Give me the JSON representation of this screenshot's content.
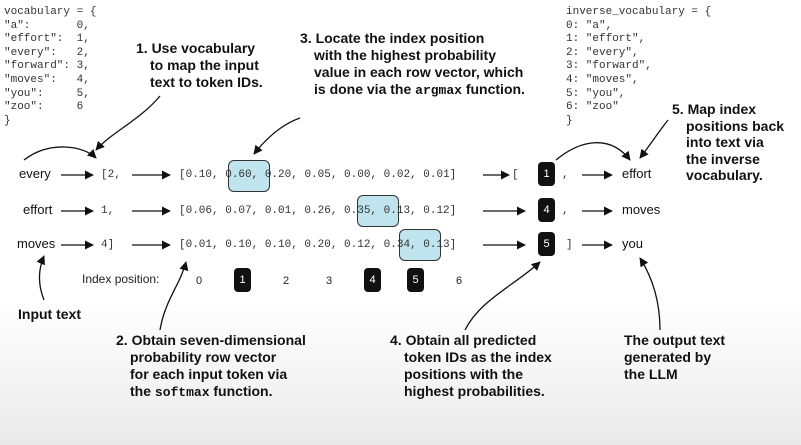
{
  "vocabulary": {
    "header": "vocabulary = {",
    "lines": [
      "\"a\":       0,",
      "\"effort\":  1,",
      "\"every\":   2,",
      "\"forward\": 3,",
      "\"moves\":   4,",
      "\"you\":     5,",
      "\"zoo\":     6"
    ],
    "footer": "}"
  },
  "inverse_vocabulary": {
    "header": "inverse_vocabulary = {",
    "lines": [
      "0: \"a\",",
      "1: \"effort\",",
      "2: \"every\",",
      "3: \"forward\",",
      "4: \"moves\",",
      "5: \"you\",",
      "6: \"zoo\""
    ],
    "footer": "}"
  },
  "rows": [
    {
      "input": "every",
      "token_id": "[2,",
      "probs_prefix": "[0.10, ",
      "probs_highlight": "0.60,",
      "probs_suffix": " 0.20, 0.05, 0.00, 0.02, 0.01]",
      "pred_open": "[",
      "pred": "1",
      "pred_close": ",",
      "output": "effort"
    },
    {
      "input": "effort",
      "token_id": "1,",
      "probs_prefix": "[0.06, 0.07, 0.01, 0.26, ",
      "probs_highlight": "0.35,",
      "probs_suffix": " 0.13, 0.12]",
      "pred_open": "",
      "pred": "4",
      "pred_close": ",",
      "output": "moves"
    },
    {
      "input": "moves",
      "token_id": "4]",
      "probs_prefix": "[0.01, 0.10, 0.10, 0.20, 0.12, ",
      "probs_highlight": "0.34,",
      "probs_suffix": " 0.13]",
      "pred_open": "",
      "pred": "5",
      "pred_close": "]",
      "output": "you"
    }
  ],
  "index_position": {
    "label": "Index position:",
    "values": [
      "0",
      "1",
      "2",
      "3",
      "4",
      "5",
      "6"
    ],
    "highlighted": [
      1,
      4,
      5
    ]
  },
  "annotations": {
    "a1": [
      "1. Use vocabulary",
      "to map the input",
      "text to token IDs."
    ],
    "a2": [
      "2. Obtain seven-dimensional",
      "probability row vector",
      "for each input token via"
    ],
    "a2_last_prefix": "the ",
    "a2_code": "softmax",
    "a2_last_suffix": " function.",
    "a3": [
      "3. Locate the index position",
      "with the highest probability",
      "value in each row vector, which"
    ],
    "a3_last_prefix": "is done via the ",
    "a3_code": "argmax",
    "a3_last_suffix": " function.",
    "a4": [
      "4. Obtain all predicted",
      "token IDs as the index",
      "positions with the",
      "highest probabilities."
    ],
    "a5": [
      "5. Map index",
      "positions back",
      "into text via",
      "the inverse",
      "vocabulary."
    ],
    "input_text": "Input text",
    "output_text": [
      "The output text",
      "generated by",
      "the LLM"
    ]
  }
}
